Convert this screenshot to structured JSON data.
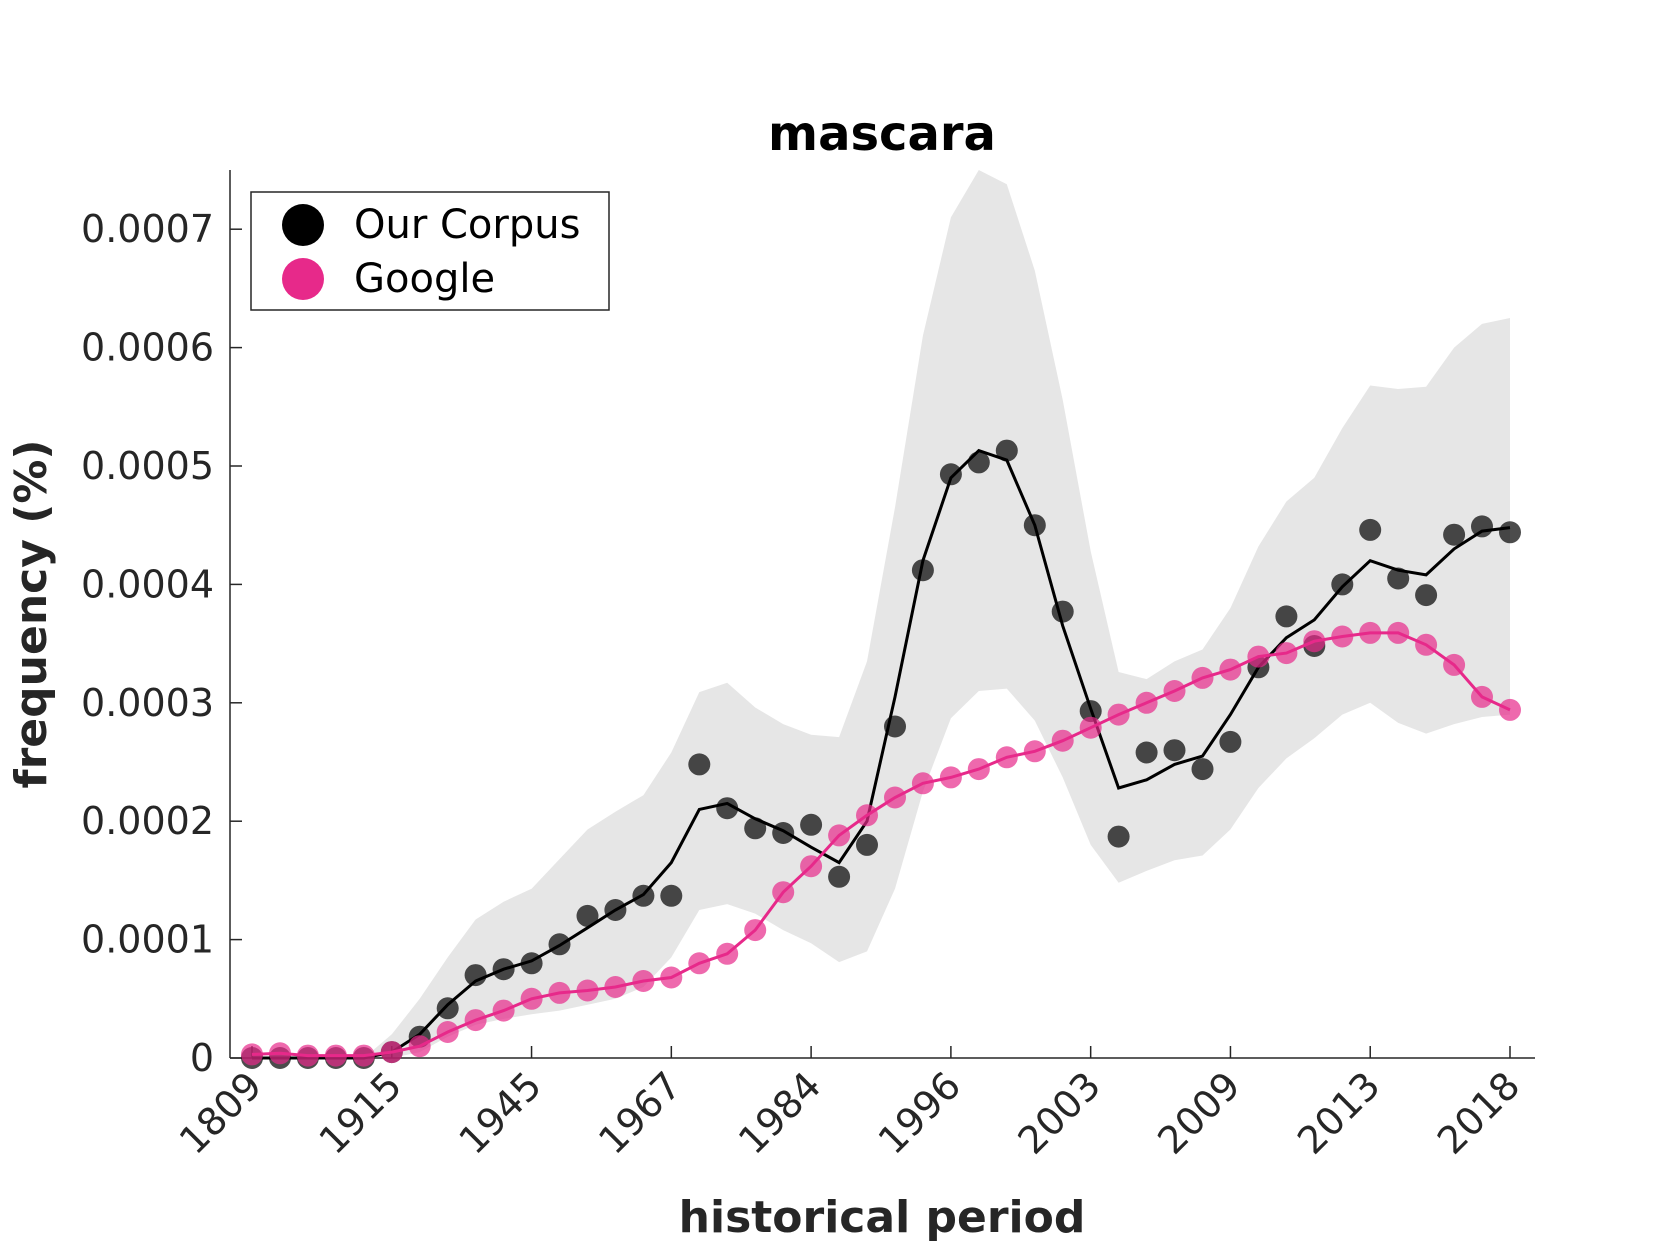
{
  "chart_data": {
    "type": "line",
    "title": "mascara",
    "xlabel": "historical period",
    "ylabel": "frequency (%)",
    "x_tick_labels": [
      "1809",
      "1915",
      "1945",
      "1967",
      "1984",
      "1996",
      "2003",
      "2009",
      "2013",
      "2018"
    ],
    "y_ticks": [
      0,
      0.0001,
      0.0002,
      0.0003,
      0.0004,
      0.0005,
      0.0006,
      0.0007
    ],
    "y_tick_labels": [
      "0",
      "0.0001",
      "0.0002",
      "0.0003",
      "0.0004",
      "0.0005",
      "0.0006",
      "0.0007"
    ],
    "ylim": [
      0,
      0.00075
    ],
    "grid": false,
    "legend_position": "top-left",
    "series": [
      {
        "name": "Our Corpus",
        "color": "#000000",
        "points": [
          0,
          0,
          0,
          0,
          0,
          5e-06,
          1.8e-05,
          4.2e-05,
          7e-05,
          7.5e-05,
          8e-05,
          9.6e-05,
          0.00012,
          0.000125,
          0.000137,
          0.000137,
          0.000248,
          0.000211,
          0.000194,
          0.00019,
          0.000197,
          0.000153,
          0.00018,
          0.00028,
          0.000412,
          0.000493,
          0.000503,
          0.000513,
          0.00045,
          0.000377,
          0.000293,
          0.000187,
          0.000258,
          0.00026,
          0.000244,
          0.000267,
          0.00033,
          0.000373,
          0.000348,
          0.0004,
          0.000446,
          0.000405,
          0.000391,
          0.000442,
          0.000449,
          0.000444
        ],
        "trend": [
          0,
          0,
          0,
          0,
          0,
          5e-06,
          2e-05,
          4.5e-05,
          6.5e-05,
          7.5e-05,
          8.2e-05,
          9.5e-05,
          0.00011,
          0.000125,
          0.000138,
          0.000165,
          0.00021,
          0.000215,
          0.000202,
          0.000192,
          0.000178,
          0.000165,
          0.0002,
          0.000305,
          0.00042,
          0.00049,
          0.000513,
          0.000505,
          0.00045,
          0.000365,
          0.000295,
          0.000228,
          0.000235,
          0.000248,
          0.000255,
          0.00029,
          0.00033,
          0.000355,
          0.00037,
          0.000398,
          0.00042,
          0.000412,
          0.000408,
          0.00043,
          0.000445,
          0.000448
        ],
        "band_upper": [
          0,
          0,
          0,
          0,
          0,
          2e-05,
          5e-05,
          8.5e-05,
          0.000117,
          0.000132,
          0.000143,
          0.000168,
          0.000193,
          0.000208,
          0.000222,
          0.000258,
          0.000309,
          0.000317,
          0.000296,
          0.000282,
          0.000273,
          0.000271,
          0.000335,
          0.000465,
          0.00061,
          0.00071,
          0.00075,
          0.000738,
          0.000665,
          0.000556,
          0.000428,
          0.000326,
          0.00032,
          0.000335,
          0.000345,
          0.00038,
          0.000432,
          0.00047,
          0.00049,
          0.000532,
          0.000568,
          0.000565,
          0.000567,
          0.0006,
          0.00062,
          0.000625
        ],
        "band_lower": [
          0,
          0,
          0,
          0,
          0,
          0,
          5e-06,
          1.8e-05,
          2.8e-05,
          3.3e-05,
          3.7e-05,
          4e-05,
          4.5e-05,
          5e-05,
          6e-05,
          8.5e-05,
          0.000125,
          0.00013,
          0.000122,
          0.000108,
          9.7e-05,
          8.1e-05,
          9e-05,
          0.000143,
          0.000225,
          0.000287,
          0.00031,
          0.000312,
          0.000285,
          0.000237,
          0.00018,
          0.000148,
          0.000158,
          0.000167,
          0.000171,
          0.000193,
          0.000228,
          0.000253,
          0.00027,
          0.00029,
          0.0003,
          0.000283,
          0.000274,
          0.000282,
          0.000288,
          0.00029
        ]
      },
      {
        "name": "Google",
        "color": "#e7298a",
        "points": [
          3e-06,
          4e-06,
          2e-06,
          2e-06,
          2e-06,
          5e-06,
          1e-05,
          2.2e-05,
          3.2e-05,
          4e-05,
          5e-05,
          5.5e-05,
          5.7e-05,
          6e-05,
          6.5e-05,
          6.8e-05,
          8e-05,
          8.8e-05,
          0.000108,
          0.00014,
          0.000162,
          0.000188,
          0.000205,
          0.00022,
          0.000232,
          0.000237,
          0.000244,
          0.000254,
          0.000259,
          0.000268,
          0.000279,
          0.00029,
          0.0003,
          0.00031,
          0.000321,
          0.000328,
          0.000339,
          0.000342,
          0.000352,
          0.000356,
          0.000359,
          0.000359,
          0.000349,
          0.000332,
          0.000305,
          0.000294
        ]
      }
    ]
  }
}
